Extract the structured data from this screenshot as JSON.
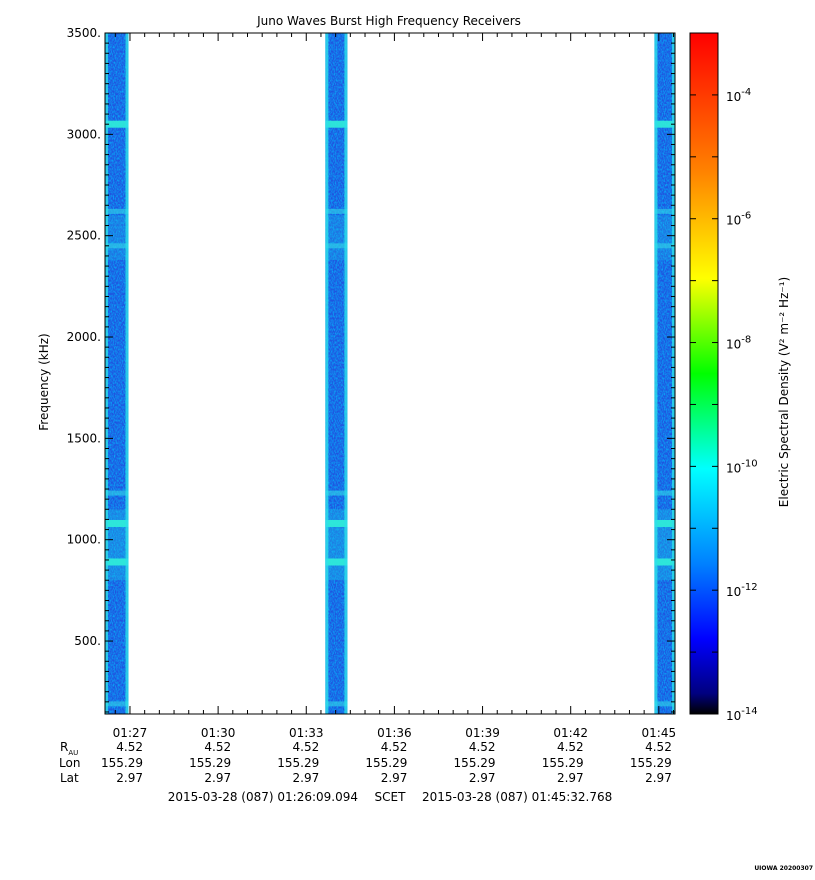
{
  "chart_data": {
    "type": "heatmap",
    "title": "Juno Waves Burst High Frequency Receivers",
    "ylabel": "Frequency (kHz)",
    "ylim": [
      140,
      3500
    ],
    "yticks": [
      {
        "v": 500,
        "label": "500."
      },
      {
        "v": 1000,
        "label": "1000."
      },
      {
        "v": 1500,
        "label": "1500."
      },
      {
        "v": 2000,
        "label": "2000."
      },
      {
        "v": 2500,
        "label": "2500."
      },
      {
        "v": 3000,
        "label": "3000."
      },
      {
        "v": 3500,
        "label": "3500."
      }
    ],
    "xrange_min": [
      86.15,
      105.55
    ],
    "xticks": [
      {
        "min": 87,
        "label": "01:27",
        "rau": "4.52",
        "lon": "155.29",
        "lat": "2.97"
      },
      {
        "min": 90,
        "label": "01:30",
        "rau": "4.52",
        "lon": "155.29",
        "lat": "2.97"
      },
      {
        "min": 93,
        "label": "01:33",
        "rau": "4.52",
        "lon": "155.29",
        "lat": "2.97"
      },
      {
        "min": 96,
        "label": "01:36",
        "rau": "4.52",
        "lon": "155.29",
        "lat": "2.97"
      },
      {
        "min": 99,
        "label": "01:39",
        "rau": "4.52",
        "lon": "155.29",
        "lat": "2.97"
      },
      {
        "min": 102,
        "label": "01:42",
        "rau": "4.52",
        "lon": "155.29",
        "lat": "2.97"
      },
      {
        "min": 105,
        "label": "01:45",
        "rau": "4.52",
        "lon": "155.29",
        "lat": "2.97"
      }
    ],
    "ephemeris_labels": {
      "r": "R",
      "r_sub": "AU",
      "lon": "Lon",
      "lat": "Lat"
    },
    "time_start": "2015-03-28 (087) 01:26:09.094",
    "time_scale": "SCET",
    "time_end": "2015-03-28 (087) 01:45:32.768",
    "bursts_min": [
      [
        86.15,
        86.95
      ],
      [
        93.65,
        94.4
      ],
      [
        104.85,
        105.55
      ]
    ],
    "spectral_features_khz": [
      {
        "f": 3050,
        "level": "bright"
      },
      {
        "f": 1080,
        "level": "bright"
      },
      {
        "f": 890,
        "level": "bright"
      },
      {
        "f": 2450,
        "level": "medium"
      },
      {
        "f": 2620,
        "level": "medium"
      },
      {
        "f": 1230,
        "level": "medium"
      },
      {
        "f": 190,
        "level": "medium"
      }
    ],
    "colorbar": {
      "label": "Electric Spectral Density (V² m⁻² Hz⁻¹)",
      "scale": "log",
      "range_exp": [
        -14,
        -3
      ],
      "ticks": [
        {
          "exp": -14,
          "base": "10",
          "sup": "-14"
        },
        {
          "exp": -12,
          "base": "10",
          "sup": "-12"
        },
        {
          "exp": -10,
          "base": "10",
          "sup": "-10"
        },
        {
          "exp": -8,
          "base": "10",
          "sup": "-8"
        },
        {
          "exp": -6,
          "base": "10",
          "sup": "-6"
        },
        {
          "exp": -4,
          "base": "10",
          "sup": "-4"
        }
      ],
      "colors": [
        "#000000",
        "#00007f",
        "#0000ff",
        "#0080ff",
        "#00ffff",
        "#00ff00",
        "#ffff00",
        "#ff8000",
        "#ff0000"
      ]
    }
  },
  "footer": {
    "tag": "UIOWA 20200307"
  }
}
